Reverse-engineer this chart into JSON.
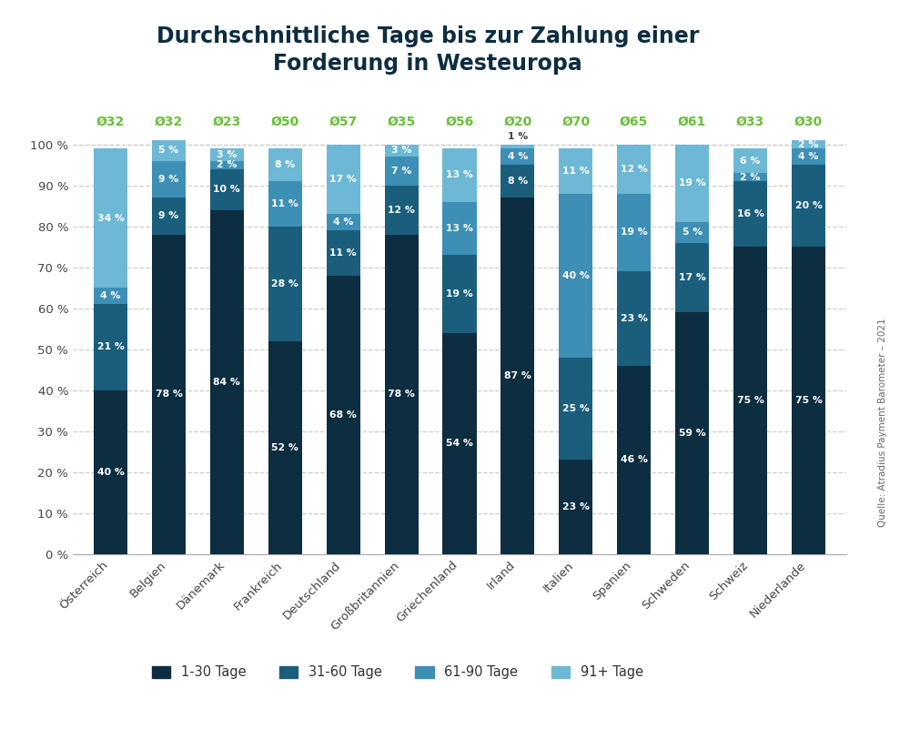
{
  "title": "Durchschnittliche Tage bis zur Zahlung einer\nForderung in Westeuropa",
  "categories": [
    "Österreich",
    "Belgien",
    "Dänemark",
    "Frankreich",
    "Deutschland",
    "Großbritannien",
    "Griechenland",
    "Irland",
    "Italien",
    "Spanien",
    "Schweden",
    "Schweiz",
    "Niederlande"
  ],
  "averages": [
    "Ø32",
    "Ø32",
    "Ø23",
    "Ø50",
    "Ø57",
    "Ø35",
    "Ø56",
    "Ø20",
    "Ø70",
    "Ø65",
    "Ø61",
    "Ø33",
    "Ø30"
  ],
  "series": {
    "1-30 Tage": [
      40,
      78,
      84,
      52,
      68,
      78,
      54,
      87,
      23,
      46,
      59,
      75,
      75
    ],
    "31-60 Tage": [
      21,
      9,
      10,
      28,
      11,
      12,
      19,
      8,
      25,
      23,
      17,
      16,
      20
    ],
    "61-90 Tage": [
      4,
      9,
      2,
      11,
      4,
      7,
      13,
      4,
      40,
      19,
      5,
      2,
      4
    ],
    "91+ Tage": [
      34,
      5,
      3,
      8,
      17,
      3,
      13,
      1,
      11,
      12,
      19,
      6,
      2
    ]
  },
  "colors": {
    "1-30 Tage": "#0d2d40",
    "31-60 Tage": "#1b5e7b",
    "61-90 Tage": "#3d8fb5",
    "91+ Tage": "#6db8d4"
  },
  "avg_color": "#6abf3b",
  "text_color_white": "#ffffff",
  "text_color_dark": "#444444",
  "background_color": "#ffffff",
  "source_text": "Quelle: Atradius Payment Barometer – 2021",
  "legend_labels": [
    "1-30 Tage",
    "31-60 Tage",
    "61-90 Tage",
    "91+ Tage"
  ],
  "irland_label_idx": 7
}
